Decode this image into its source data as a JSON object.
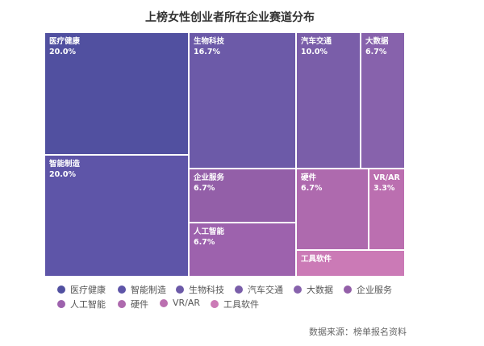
{
  "chart_data": {
    "type": "treemap",
    "title": "上榜女性创业者所在企业赛道分布",
    "items": [
      {
        "name": "医疗健康",
        "value": 20.0,
        "label": "20.0%",
        "color": "#5150a0"
      },
      {
        "name": "智能制造",
        "value": 20.0,
        "label": "20.0%",
        "color": "#5e55a8"
      },
      {
        "name": "生物科技",
        "value": 16.7,
        "label": "16.7%",
        "color": "#6c5aa8"
      },
      {
        "name": "汽车交通",
        "value": 10.0,
        "label": "10.0%",
        "color": "#7a5ea9"
      },
      {
        "name": "大数据",
        "value": 6.7,
        "label": "6.7%",
        "color": "#8762ac"
      },
      {
        "name": "企业服务",
        "value": 6.7,
        "label": "6.7%",
        "color": "#935fa8"
      },
      {
        "name": "人工智能",
        "value": 6.7,
        "label": "6.7%",
        "color": "#9d62ad"
      },
      {
        "name": "硬件",
        "value": 6.7,
        "label": "6.7%",
        "color": "#ae6aae"
      },
      {
        "name": "VR/AR",
        "value": 3.3,
        "label": "3.3%",
        "color": "#bb6fb0"
      },
      {
        "name": "工具软件",
        "value": 3.3,
        "label": "",
        "color": "#cb7ab6"
      }
    ],
    "legend_placement": "bottom"
  },
  "source": "数据来源：榜单报名资料"
}
